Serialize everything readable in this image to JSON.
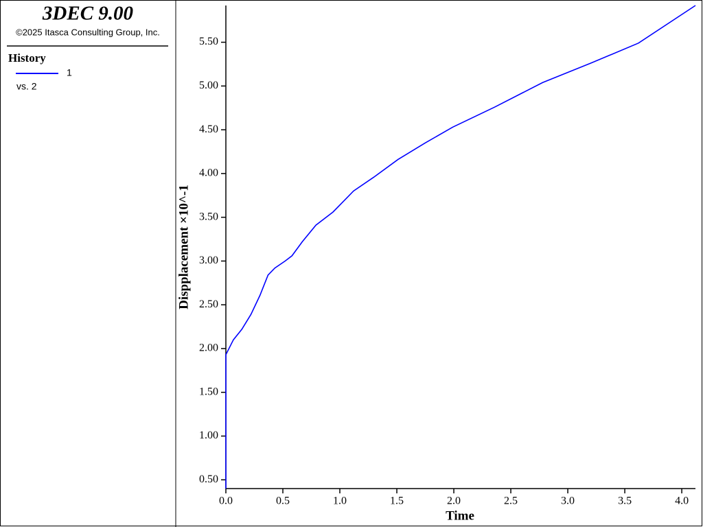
{
  "header": {
    "title": "3DEC 9.00",
    "copyright": "©2025 Itasca Consulting Group, Inc."
  },
  "chart_data": {
    "type": "line",
    "legend_title": "History",
    "legend_note": "vs. 2",
    "x_label": "Time",
    "y_label": "Dispplacement ×10^-1",
    "x": [
      0,
      0,
      0.066,
      0.14,
      0.22,
      0.3,
      0.37,
      0.43,
      0.52,
      0.58,
      0.67,
      0.79,
      0.94,
      1.12,
      1.3,
      1.51,
      1.75,
      1.99,
      2.36,
      2.78,
      3.2,
      3.62,
      4.12
    ],
    "series": [
      {
        "name": "1",
        "color": "#0000ff",
        "values": [
          0.4,
          1.93,
          2.1,
          2.22,
          2.39,
          2.61,
          2.84,
          2.92,
          3.0,
          3.06,
          3.22,
          3.41,
          3.56,
          3.8,
          3.96,
          4.16,
          4.35,
          4.53,
          4.76,
          5.04,
          5.26,
          5.49,
          5.92
        ]
      }
    ],
    "xlim": [
      0,
      4.12
    ],
    "ylim": [
      0.4,
      5.92
    ],
    "xticks": [
      {
        "value": 0,
        "label": "0.0"
      },
      0.5,
      {
        "value": 1,
        "label": "1.0"
      },
      1.5,
      {
        "value": 2,
        "label": "2.0"
      },
      2.5,
      {
        "value": 3,
        "label": "3.0"
      },
      3.5,
      {
        "value": 4,
        "label": "4.0"
      }
    ],
    "yticks": [
      {
        "value": 0.5,
        "label": "0.50"
      },
      {
        "value": 1,
        "label": "1.00"
      },
      {
        "value": 1.5,
        "label": "1.50"
      },
      {
        "value": 2,
        "label": "2.00"
      },
      {
        "value": 2.5,
        "label": "2.50"
      },
      {
        "value": 3,
        "label": "3.00"
      },
      {
        "value": 3.5,
        "label": "3.50"
      },
      {
        "value": 4,
        "label": "4.00"
      },
      {
        "value": 4.5,
        "label": "4.50"
      },
      {
        "value": 5,
        "label": "5.00"
      },
      {
        "value": 5.5,
        "label": "5.50"
      }
    ],
    "grid": false
  }
}
